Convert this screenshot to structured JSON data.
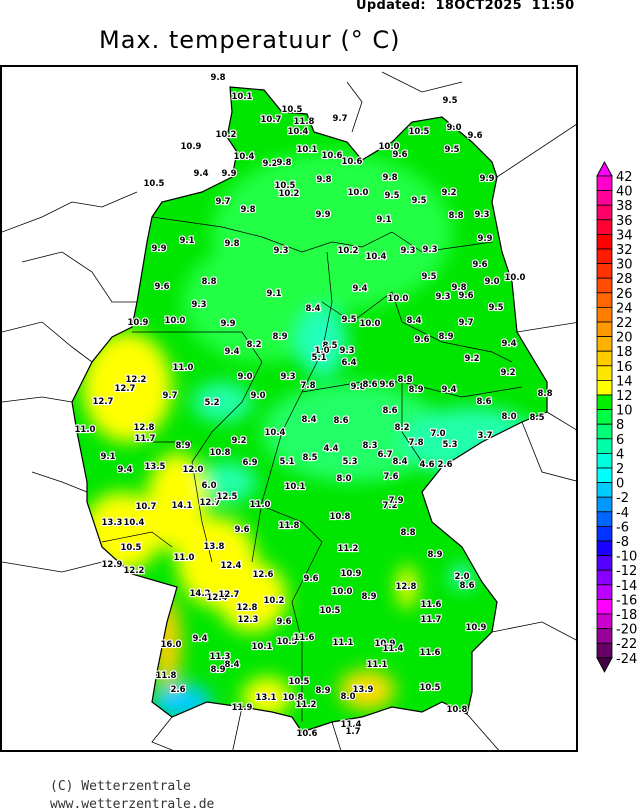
{
  "header": {
    "updated": "Updated:  18OCT2025  11:50",
    "title": "Max. temperatuur (° C)"
  },
  "footer": {
    "copyright": "(C) Wetterzentrale",
    "website": "www.wetterzentrale.de"
  },
  "colorbar": {
    "unit": "°C",
    "levels": [
      42,
      40,
      38,
      36,
      34,
      32,
      30,
      28,
      26,
      24,
      22,
      20,
      18,
      16,
      14,
      12,
      10,
      8,
      6,
      4,
      2,
      0,
      -2,
      -4,
      -6,
      -8,
      -10,
      -12,
      -14,
      -16,
      -18,
      -20,
      -22,
      -24
    ],
    "colors_top_to_bottom": [
      "#ff00cc",
      "#ff0099",
      "#ff0066",
      "#ff0033",
      "#ff0000",
      "#ff1a00",
      "#ff3300",
      "#ff4d00",
      "#ff6600",
      "#ff8000",
      "#ff9900",
      "#ffb300",
      "#ffcc00",
      "#ffe600",
      "#ffff00",
      "#00ee00",
      "#00ff44",
      "#00ff77",
      "#00ffaa",
      "#00ffdd",
      "#00ffff",
      "#00ccff",
      "#0099ff",
      "#0066ff",
      "#0033ff",
      "#1a00ff",
      "#5500ff",
      "#8800ff",
      "#bb00ff",
      "#ff00ff",
      "#cc00cc",
      "#990099",
      "#660066"
    ],
    "above_max_color": "#ff00ff",
    "below_min_color": "#440044"
  },
  "map": {
    "region": "Germany",
    "land_color": "#00e600",
    "station_values": [
      "9.8",
      "10.1",
      "10.5",
      "10.7",
      "11.8",
      "9.7",
      "10.4",
      "10.2",
      "10.9",
      "10.1",
      "10.6",
      "10.6",
      "10.4",
      "9.2",
      "9.8",
      "9.4",
      "9.9",
      "10.5",
      "9.8",
      "10.5",
      "10.2",
      "9.7",
      "9.8",
      "9.9",
      "9.1",
      "9.8",
      "9.5",
      "10.5",
      "9.0",
      "9.6",
      "10.0",
      "9.6",
      "9.5",
      "9.8",
      "10.0",
      "9.5",
      "9.2",
      "9.5",
      "9.9",
      "9.1",
      "8.8",
      "9.3",
      "9.9",
      "10.2",
      "10.4",
      "9.3",
      "9.3",
      "9.3",
      "9.6",
      "9.0",
      "10.0",
      "9.5",
      "9.8",
      "9.3",
      "9.6",
      "9.4",
      "10.0",
      "9.5",
      "8.4",
      "8.4",
      "9.5",
      "10.0",
      "9.7",
      "8.9",
      "9.6",
      "8.9",
      "9.4",
      "8.5",
      "1.0",
      "5.1",
      "9.3",
      "9.2",
      "6.4",
      "9.2",
      "9.3",
      "7.8",
      "9.8",
      "8.6",
      "9.6",
      "8.8",
      "8.9",
      "9.4",
      "8.8",
      "8.6",
      "8.4",
      "8.6",
      "8.6",
      "8.0",
      "8.5",
      "8.2",
      "7.0",
      "3.7",
      "10.4",
      "4.4",
      "8.3",
      "7.8",
      "5.3",
      "6.7",
      "8.4",
      "4.6",
      "2.6",
      "5.1",
      "8.5",
      "5.3",
      "9.9",
      "9.6",
      "8.8",
      "9.3",
      "10.9",
      "10.0",
      "9.9",
      "9.1",
      "9.4",
      "8.2",
      "11.0",
      "12.2",
      "12.7",
      "9.0",
      "9.7",
      "9.0",
      "12.7",
      "5.2",
      "11.0",
      "12.8",
      "11.7",
      "8.9",
      "9.1",
      "9.2",
      "10.8",
      "6.9",
      "9.4",
      "13.5",
      "12.0",
      "6.0",
      "14.1",
      "12.7",
      "12.5",
      "11.0",
      "10.7",
      "13.3",
      "10.4",
      "9.6",
      "10.5",
      "13.8",
      "11.0",
      "12.9",
      "12.2",
      "12.4",
      "12.6",
      "11.8",
      "10.1",
      "10.8",
      "7.2",
      "7.9",
      "7.6",
      "8.0",
      "8.8",
      "11.2",
      "8.9",
      "9.6",
      "10.9",
      "2.0",
      "8.6",
      "14.2",
      "12.4",
      "12.7",
      "10.0",
      "8.9",
      "12.8",
      "12.8",
      "10.2",
      "11.6",
      "10.5",
      "12.3",
      "9.6",
      "11.7",
      "10.9",
      "16.0",
      "9.4",
      "10.5",
      "11.6",
      "10.1",
      "11.1",
      "10.9",
      "11.4",
      "11.6",
      "11.3",
      "8.4",
      "8.9",
      "11.1",
      "11.8",
      "2.6",
      "10.5",
      "8.9",
      "13.9",
      "10.5",
      "13.1",
      "10.8",
      "8.0",
      "11.2",
      "11.9",
      "10.8",
      "11.4",
      "1.7",
      "10.6"
    ]
  }
}
